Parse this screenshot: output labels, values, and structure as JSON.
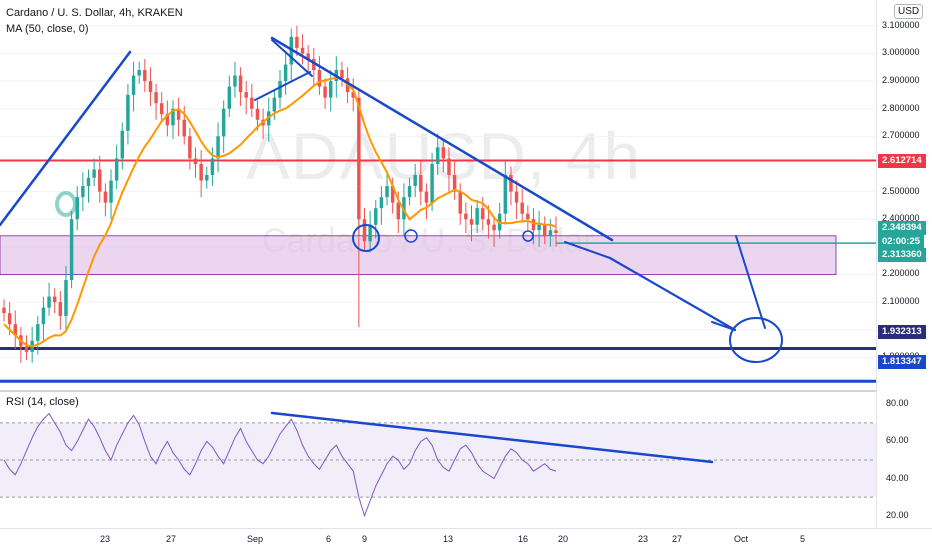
{
  "header": {
    "symbol_line": "Cardano / U. S. Dollar, 4h, KRAKEN",
    "ma_label": "MA (50, close, 0)",
    "currency_button": "USD"
  },
  "watermark": {
    "title": "ADAUSD, 4h",
    "subtitle": "Cardano / U. S. Dollar"
  },
  "rsi_panel": {
    "label": "RSI (14, close)"
  },
  "price_tags": [
    {
      "value": "2.612714",
      "color": "#f23645"
    },
    {
      "value": "2.348394",
      "color": "#26a69a"
    },
    {
      "value": "02:00:25",
      "color": "#26a69a"
    },
    {
      "value": "2.313360",
      "color": "#26a69a"
    },
    {
      "value": "1.932313",
      "color": "#2a2e7a"
    },
    {
      "value": "1.813347",
      "color": "#1848cc"
    }
  ],
  "colors": {
    "up": "#26a69a",
    "down": "#ef5350",
    "ma": "#ff9800",
    "drawing": "#1848cc",
    "support_zone": "#e1bee7",
    "rsi": "#7e57c2"
  },
  "chart_data": [
    {
      "type": "candlestick",
      "title": "Cardano / U. S. Dollar, 4h, KRAKEN",
      "ylim": [
        1.8,
        3.15
      ],
      "y_ticks": [
        "3.100000",
        "3.000000",
        "2.900000",
        "2.800000",
        "2.700000",
        "2.600000",
        "2.500000",
        "2.400000",
        "2.300000",
        "2.200000",
        "2.100000",
        "2.000000",
        "1.900000"
      ],
      "x_ticks": [
        "23",
        "27",
        "Sep",
        "6",
        "9",
        "13",
        "16",
        "20",
        "23",
        "27",
        "Oct",
        "5"
      ],
      "close_series": [
        2.06,
        2.02,
        1.98,
        1.94,
        1.92,
        1.96,
        2.02,
        2.08,
        2.12,
        2.1,
        2.05,
        2.18,
        2.4,
        2.48,
        2.52,
        2.55,
        2.58,
        2.5,
        2.46,
        2.54,
        2.62,
        2.72,
        2.85,
        2.92,
        2.94,
        2.9,
        2.86,
        2.82,
        2.78,
        2.74,
        2.8,
        2.76,
        2.7,
        2.62,
        2.6,
        2.54,
        2.56,
        2.62,
        2.7,
        2.8,
        2.88,
        2.92,
        2.86,
        2.84,
        2.8,
        2.76,
        2.74,
        2.79,
        2.84,
        2.9,
        2.96,
        3.06,
        3.02,
        3.0,
        2.98,
        2.94,
        2.88,
        2.84,
        2.9,
        2.94,
        2.91,
        2.86,
        2.84,
        2.4,
        2.32,
        2.38,
        2.44,
        2.48,
        2.52,
        2.46,
        2.4,
        2.48,
        2.52,
        2.56,
        2.5,
        2.46,
        2.6,
        2.66,
        2.62,
        2.56,
        2.5,
        2.42,
        2.4,
        2.38,
        2.44,
        2.4,
        2.38,
        2.36,
        2.42,
        2.56,
        2.5,
        2.46,
        2.42,
        2.4,
        2.36,
        2.38,
        2.34,
        2.36,
        2.35
      ],
      "ma_label": "MA (50, close, 0)",
      "horizontal_levels": [
        2.612714,
        2.31336,
        1.932313,
        1.813347
      ],
      "support_zone": [
        2.2,
        2.34
      ]
    },
    {
      "type": "line",
      "title": "RSI (14, close)",
      "ylim": [
        15,
        85
      ],
      "y_ticks": [
        "80.00",
        "60.00",
        "40.00",
        "20.00"
      ],
      "bands": [
        30,
        50,
        70
      ],
      "values": [
        50,
        45,
        42,
        48,
        55,
        62,
        68,
        72,
        75,
        70,
        65,
        58,
        55,
        60,
        66,
        72,
        68,
        62,
        55,
        50,
        58,
        64,
        70,
        74,
        69,
        60,
        52,
        48,
        55,
        60,
        54,
        50,
        45,
        42,
        48,
        55,
        60,
        57,
        52,
        48,
        55,
        62,
        67,
        60,
        55,
        50,
        48,
        52,
        58,
        64,
        68,
        72,
        66,
        58,
        52,
        48,
        45,
        50,
        55,
        58,
        52,
        48,
        44,
        30,
        20,
        28,
        36,
        42,
        48,
        52,
        50,
        45,
        48,
        55,
        60,
        62,
        58,
        50,
        46,
        44,
        50,
        56,
        58,
        54,
        48,
        44,
        42,
        40,
        46,
        52,
        56,
        54,
        50,
        48,
        44,
        46,
        48,
        45,
        44
      ]
    }
  ]
}
